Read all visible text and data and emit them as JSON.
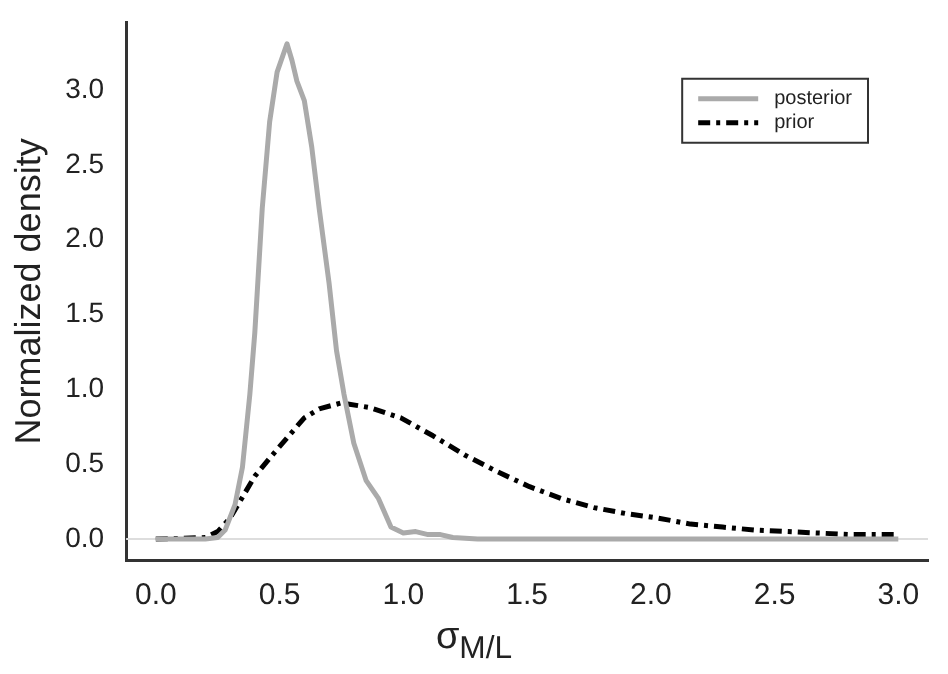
{
  "chart_data": {
    "type": "line",
    "xlabel": "σ$_{M/L}$",
    "ylabel": "Normalized density",
    "xlim": [
      -0.12,
      3.12
    ],
    "ylim": [
      -0.14,
      3.45
    ],
    "xticks": [
      {
        "value": 0,
        "label": "0.0"
      },
      {
        "value": 0.5,
        "label": "0.5"
      },
      {
        "value": 1,
        "label": "1.0"
      },
      {
        "value": 1.5,
        "label": "1.5"
      },
      {
        "value": 2,
        "label": "2.0"
      },
      {
        "value": 2.5,
        "label": "2.5"
      },
      {
        "value": 3,
        "label": "3.0"
      }
    ],
    "yticks": [
      {
        "value": 0,
        "label": "0.0"
      },
      {
        "value": 0.5,
        "label": "0.5"
      },
      {
        "value": 1,
        "label": "1.0"
      },
      {
        "value": 1.5,
        "label": "1.5"
      },
      {
        "value": 2,
        "label": "2.0"
      },
      {
        "value": 2.5,
        "label": "2.5"
      },
      {
        "value": 3,
        "label": "3.0"
      }
    ],
    "legend": "top right",
    "marker": "none",
    "ref_lines": [
      {
        "axis": "y",
        "value": 0,
        "color": "#dddddd"
      }
    ],
    "series": [
      {
        "name": "posterior",
        "color": "#aaaaaa",
        "line_style": "solid",
        "x": [
          0,
          0.2,
          0.25,
          0.28,
          0.32,
          0.35,
          0.38,
          0.4,
          0.43,
          0.46,
          0.49,
          0.53,
          0.55,
          0.57,
          0.6,
          0.63,
          0.66,
          0.7,
          0.73,
          0.76,
          0.8,
          0.85,
          0.9,
          0.95,
          1.0,
          1.05,
          1.1,
          1.15,
          1.2,
          1.3,
          1.5,
          2.0,
          2.5,
          3.0
        ],
        "values": [
          0,
          0,
          0.01,
          0.06,
          0.23,
          0.48,
          0.97,
          1.38,
          2.21,
          2.79,
          3.12,
          3.31,
          3.2,
          3.06,
          2.93,
          2.62,
          2.21,
          1.71,
          1.26,
          0.97,
          0.64,
          0.39,
          0.27,
          0.08,
          0.04,
          0.05,
          0.03,
          0.03,
          0.01,
          0,
          0,
          0,
          0,
          0
        ]
      },
      {
        "name": "prior",
        "color": "#000000",
        "line_style": "dashed",
        "x": [
          0,
          0.2,
          0.25,
          0.3,
          0.35,
          0.4,
          0.47,
          0.6,
          0.66,
          0.75,
          0.86,
          0.99,
          1.12,
          1.25,
          1.38,
          1.51,
          1.64,
          1.77,
          1.9,
          2.03,
          2.16,
          2.29,
          2.42,
          2.55,
          2.68,
          2.81,
          3.0
        ],
        "values": [
          0,
          0.01,
          0.05,
          0.14,
          0.28,
          0.42,
          0.56,
          0.81,
          0.87,
          0.91,
          0.88,
          0.81,
          0.69,
          0.56,
          0.45,
          0.35,
          0.27,
          0.21,
          0.17,
          0.14,
          0.1,
          0.08,
          0.06,
          0.05,
          0.04,
          0.03,
          0.03
        ]
      }
    ]
  }
}
